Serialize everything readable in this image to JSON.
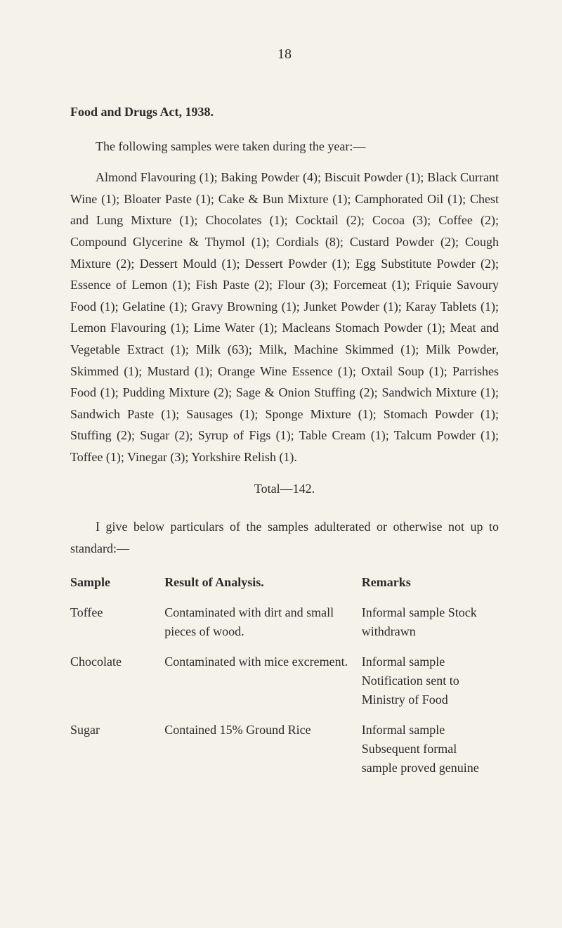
{
  "pageNumber": "18",
  "title": "Food and Drugs Act, 1938.",
  "intro": "The following samples were taken during the year:—",
  "body": "Almond Flavouring (1); Baking Powder (4); Biscuit Powder (1); Black Currant Wine (1); Bloater Paste (1); Cake & Bun Mixture (1); Camphorated Oil (1); Chest and Lung Mixture (1); Chocolates (1); Cocktail (2); Cocoa (3); Coffee (2); Compound Glycerine & Thymol (1); Cordials (8); Custard Powder (2); Cough Mixture (2); Dessert Mould (1); Dessert Powder (1); Egg Substitute Powder (2); Essence of Lemon (1); Fish Paste (2); Flour (3); Forcemeat (1); Friquie Savoury Food (1); Gelatine (1); Gravy Browning (1); Junket Powder (1); Karay Tablets (1); Lemon Flavouring (1); Lime Water (1); Macleans Stomach Powder (1); Meat and Vegetable Extract (1); Milk (63); Milk, Machine Skimmed (1); Milk Powder, Skimmed (1); Mustard (1); Orange Wine Essence (1); Oxtail Soup (1); Parrishes Food (1); Pudding Mixture (2); Sage & Onion Stuffing (2); Sandwich Mixture (1); Sandwich Paste (1); Sausages (1); Sponge Mixture (1); Stomach Powder (1); Stuffing (2); Sugar (2); Syrup of Figs (1); Table Cream (1); Talcum Powder (1); Toffee (1); Vinegar (3); Yorkshire Relish (1).",
  "totalLine": "Total—142.",
  "subhead": "I give below particulars of the samples adulterated or otherwise not up to standard:—",
  "table": {
    "headers": {
      "c1": "Sample",
      "c2": "Result of Analysis.",
      "c3": "Remarks"
    },
    "rows": [
      {
        "c1": "Toffee",
        "c2": "Contaminated with dirt and small pieces of wood.",
        "c3": "Informal sample Stock withdrawn"
      },
      {
        "c1": "Chocolate",
        "c2": "Contaminated with mice excrement.",
        "c3": "Informal sample Notification sent to Ministry of Food"
      },
      {
        "c1": "Sugar",
        "c2": "Contained 15% Ground Rice",
        "c3": "Informal sample Subsequent formal sample proved genuine"
      }
    ]
  }
}
